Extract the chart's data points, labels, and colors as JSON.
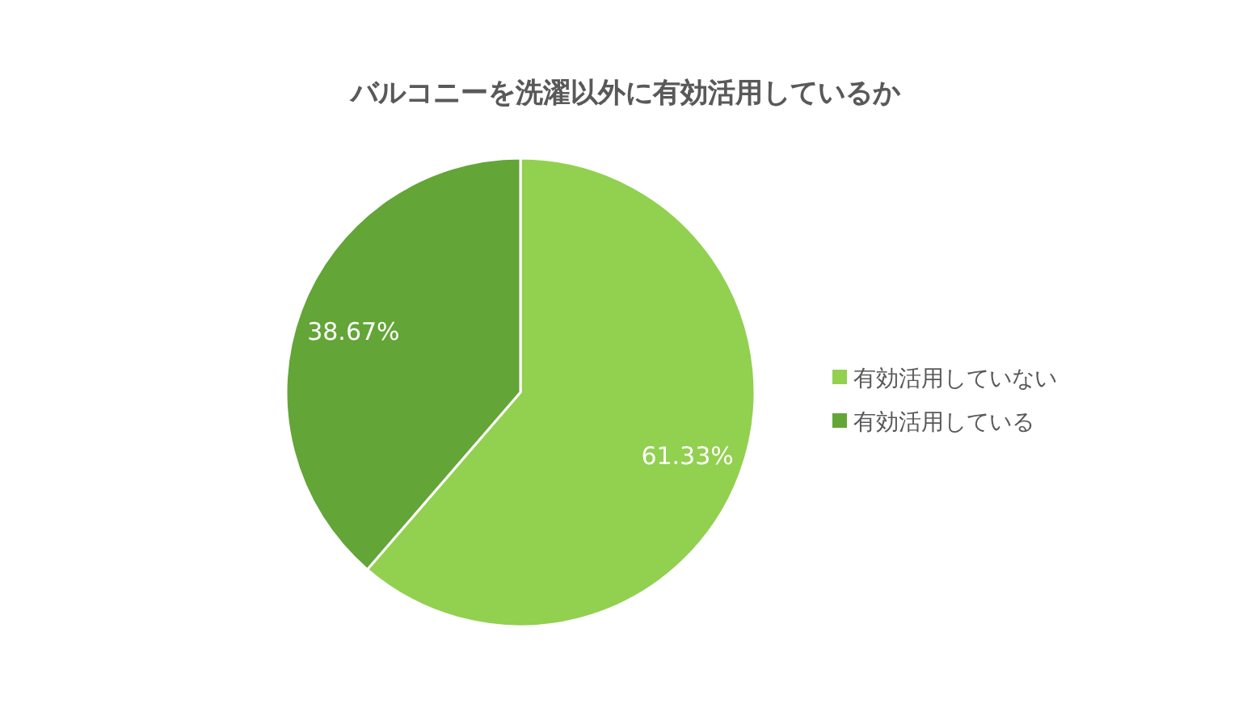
{
  "chart_data": {
    "type": "pie",
    "title": "バルコニーを洗濯以外に有効活用しているか",
    "categories": [
      "有効活用していない",
      "有効活用している"
    ],
    "values": [
      61.33,
      38.67
    ],
    "colors": [
      "#92d050",
      "#63a537"
    ],
    "value_labels": [
      "61.33%",
      "38.67%"
    ],
    "legend": "right"
  }
}
